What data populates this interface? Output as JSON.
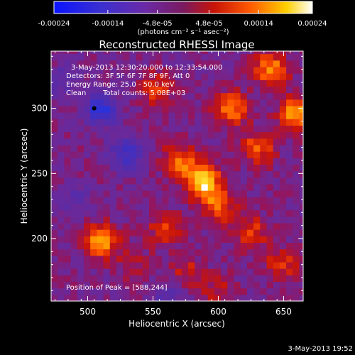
{
  "chart_data": {
    "type": "heatmap",
    "title": "Reconstructed RHESSI Image",
    "xlabel": "Heliocentric X (arcsec)",
    "ylabel": "Heliocentric Y (arcsec)",
    "xlim": [
      472,
      665
    ],
    "ylim": [
      152,
      344
    ],
    "xticks": [
      500,
      550,
      600,
      650
    ],
    "yticks": [
      200,
      250,
      300
    ],
    "colorbar": {
      "range": [
        -0.00024,
        0.00024
      ],
      "tick_values": [
        -0.00024,
        -0.00014,
        -4.8e-05,
        4.8e-05,
        0.00014,
        0.00024
      ],
      "tick_labels": [
        "-0.00024",
        "-0.00014",
        "-4.8e-05",
        "4.8e-05",
        "0.00014",
        "0.00024"
      ],
      "unit_label": "(photons cm⁻² s⁻¹ asec⁻²)"
    },
    "annotations": {
      "time": "3-May-2013 12:30:20.000 to 12:33:54.000",
      "detectors": "Detectors: 3F 5F 6F 7F 8F 9F, Att 0",
      "energy": "Energy Range: 25.0 - 50.0 keV",
      "algorithm": "Clean",
      "total_counts": "Total counts: 5.08E+03",
      "peak": "Position of Peak = [588,244]"
    },
    "bright_sources": [
      {
        "x": 588,
        "y": 244,
        "value": 0.00022
      },
      {
        "x": 660,
        "y": 296,
        "value": 0.00018
      },
      {
        "x": 640,
        "y": 330,
        "value": 0.00015
      },
      {
        "x": 610,
        "y": 300,
        "value": 0.00014
      },
      {
        "x": 630,
        "y": 270,
        "value": 0.00012
      },
      {
        "x": 570,
        "y": 260,
        "value": 0.00013
      },
      {
        "x": 600,
        "y": 225,
        "value": 0.00012
      },
      {
        "x": 625,
        "y": 205,
        "value": 0.0001
      },
      {
        "x": 648,
        "y": 180,
        "value": 9e-05
      },
      {
        "x": 510,
        "y": 198,
        "value": 0.00016
      },
      {
        "x": 560,
        "y": 208,
        "value": 0.0001
      },
      {
        "x": 552,
        "y": 315,
        "value": 9e-05
      },
      {
        "x": 575,
        "y": 175,
        "value": 7e-05
      },
      {
        "x": 600,
        "y": 160,
        "value": 6e-05
      },
      {
        "x": 535,
        "y": 182,
        "value": 5e-05
      }
    ],
    "dark_sources": [
      {
        "x": 510,
        "y": 300,
        "value": -0.00016
      },
      {
        "x": 530,
        "y": 265,
        "value": -0.00012
      },
      {
        "x": 490,
        "y": 230,
        "value": -6e-05
      },
      {
        "x": 560,
        "y": 155,
        "value": -7e-05
      },
      {
        "x": 480,
        "y": 320,
        "value": -6e-05
      }
    ]
  },
  "footer": {
    "timestamp": "3-May-2013 19:52"
  }
}
